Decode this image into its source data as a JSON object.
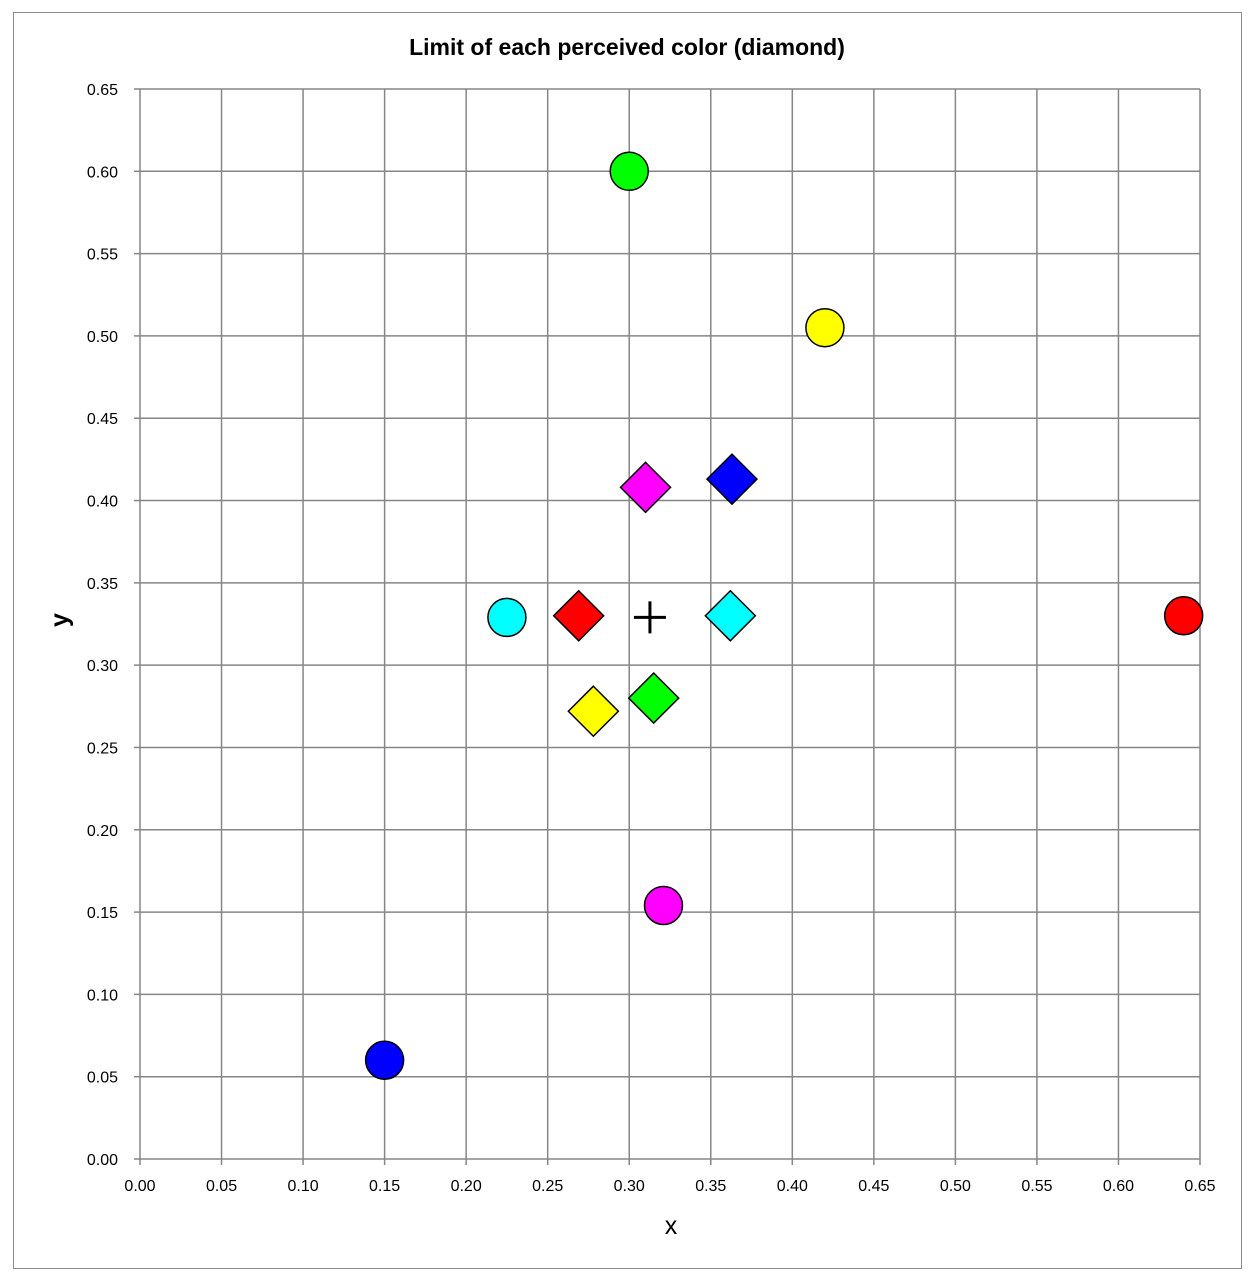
{
  "chart_data": {
    "type": "scatter",
    "title": "Limit of each perceived color (diamond)",
    "xlabel": "x",
    "ylabel": "y",
    "xlim": [
      0,
      0.65
    ],
    "ylim": [
      0,
      0.65
    ],
    "xticks": [
      "0.00",
      "0.05",
      "0.10",
      "0.15",
      "0.20",
      "0.25",
      "0.30",
      "0.35",
      "0.40",
      "0.45",
      "0.50",
      "0.55",
      "0.60",
      "0.65"
    ],
    "yticks": [
      "0.00",
      "0.05",
      "0.10",
      "0.15",
      "0.20",
      "0.25",
      "0.30",
      "0.35",
      "0.40",
      "0.45",
      "0.50",
      "0.55",
      "0.60",
      "0.65"
    ],
    "grid": true,
    "legend": "none",
    "series": [
      {
        "marker": "circle",
        "points": [
          {
            "x": 0.64,
            "y": 0.33,
            "color": "#ff0000"
          },
          {
            "x": 0.3,
            "y": 0.6,
            "color": "#00ff00"
          },
          {
            "x": 0.15,
            "y": 0.06,
            "color": "#0000ff"
          },
          {
            "x": 0.42,
            "y": 0.505,
            "color": "#ffff00"
          },
          {
            "x": 0.225,
            "y": 0.329,
            "color": "#00ffff"
          },
          {
            "x": 0.321,
            "y": 0.154,
            "color": "#ff00ff"
          }
        ]
      },
      {
        "marker": "diamond",
        "points": [
          {
            "x": 0.269,
            "y": 0.33,
            "color": "#ff0000"
          },
          {
            "x": 0.315,
            "y": 0.28,
            "color": "#00ff00"
          },
          {
            "x": 0.363,
            "y": 0.413,
            "color": "#0000ff"
          },
          {
            "x": 0.278,
            "y": 0.272,
            "color": "#ffff00"
          },
          {
            "x": 0.362,
            "y": 0.33,
            "color": "#00ffff"
          },
          {
            "x": 0.31,
            "y": 0.408,
            "color": "#ff00ff"
          }
        ]
      },
      {
        "marker": "cross",
        "points": [
          {
            "x": 0.3127,
            "y": 0.329,
            "color": "#000000"
          }
        ]
      }
    ]
  }
}
